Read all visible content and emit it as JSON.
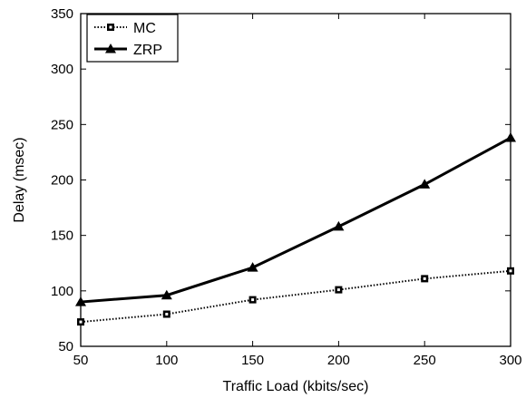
{
  "chart_data": {
    "type": "line",
    "xlabel": "Traffic Load (kbits/sec)",
    "ylabel": "Delay (msec)",
    "xlim": [
      50,
      300
    ],
    "ylim": [
      50,
      350
    ],
    "x_ticks": [
      50,
      100,
      150,
      200,
      250,
      300
    ],
    "y_ticks": [
      50,
      100,
      150,
      200,
      250,
      300,
      350
    ],
    "x": [
      50,
      100,
      150,
      200,
      250,
      300
    ],
    "grid": false,
    "legend_position": "top-left",
    "series": [
      {
        "name": "MC",
        "values": [
          72,
          79,
          92,
          101,
          111,
          118
        ],
        "line_style": "dotted",
        "marker": "square",
        "color": "#000000"
      },
      {
        "name": "ZRP",
        "values": [
          90,
          96,
          121,
          158,
          196,
          238
        ],
        "line_style": "solid",
        "marker": "triangle",
        "color": "#000000"
      }
    ]
  }
}
